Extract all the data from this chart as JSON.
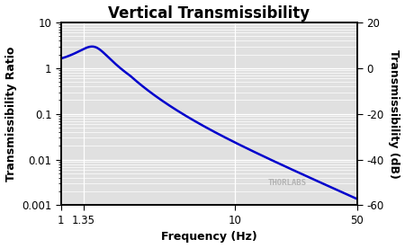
{
  "title": "Vertical Transmissibility",
  "xlabel": "Frequency (Hz)",
  "ylabel_left": "Transmissibility Ratio",
  "ylabel_right": "Transmissibility (dB)",
  "xlim": [
    1,
    50
  ],
  "ylim_left": [
    0.001,
    10
  ],
  "ylim_right": [
    -60,
    20
  ],
  "line_color": "#0000cc",
  "line_width": 1.8,
  "plot_bg_color": "#e0e0e0",
  "grid_color": "#ffffff",
  "fig_bg_color": "#ffffff",
  "title_fontsize": 12,
  "label_fontsize": 9,
  "tick_fontsize": 8.5,
  "watermark": "THORLABS",
  "xticks": [
    1,
    1.35,
    10,
    50
  ],
  "xtick_labels": [
    "1",
    "1.35",
    "10",
    "50"
  ],
  "yticks_left": [
    0.001,
    0.01,
    0.1,
    1,
    10
  ],
  "yticks_right": [
    -60,
    -40,
    -20,
    0,
    20
  ],
  "f0": 1.55,
  "zeta": 0.18,
  "extra_rolloff_start": 2.5,
  "extra_rolloff_exp": 0.7
}
